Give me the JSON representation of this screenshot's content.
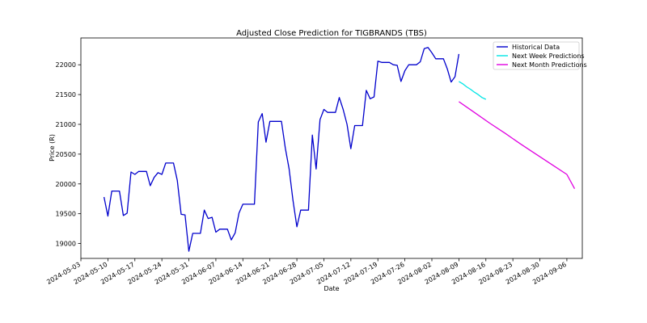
{
  "chart_data": {
    "type": "line",
    "title": "Adjusted Close Prediction for TIGBRANDS (TBS)",
    "xlabel": "Date",
    "ylabel": "Price (R)",
    "xlim": [
      "2024-05-03",
      "2024-09-10"
    ],
    "ylim": [
      18750,
      22450
    ],
    "grid": false,
    "legend_position": "top-right",
    "x_ticks": [
      "2024-05-03",
      "2024-05-10",
      "2024-05-17",
      "2024-05-24",
      "2024-05-31",
      "2024-06-07",
      "2024-06-14",
      "2024-06-21",
      "2024-06-28",
      "2024-07-05",
      "2024-07-12",
      "2024-07-19",
      "2024-07-26",
      "2024-08-02",
      "2024-08-09",
      "2024-08-16",
      "2024-08-23",
      "2024-08-30",
      "2024-09-06"
    ],
    "y_ticks": [
      19000,
      19500,
      20000,
      20500,
      21000,
      21500,
      22000
    ],
    "series": [
      {
        "name": "Historical Data",
        "color": "#0000cc",
        "x": [
          "2024-05-09",
          "2024-05-10",
          "2024-05-11",
          "2024-05-13",
          "2024-05-14",
          "2024-05-15",
          "2024-05-16",
          "2024-05-17",
          "2024-05-18",
          "2024-05-20",
          "2024-05-21",
          "2024-05-22",
          "2024-05-23",
          "2024-05-24",
          "2024-05-25",
          "2024-05-27",
          "2024-05-28",
          "2024-05-29",
          "2024-05-30",
          "2024-05-31",
          "2024-06-01",
          "2024-06-03",
          "2024-06-04",
          "2024-06-05",
          "2024-06-06",
          "2024-06-07",
          "2024-06-08",
          "2024-06-10",
          "2024-06-11",
          "2024-06-12",
          "2024-06-13",
          "2024-06-14",
          "2024-06-17",
          "2024-06-18",
          "2024-06-19",
          "2024-06-20",
          "2024-06-21",
          "2024-06-24",
          "2024-06-25",
          "2024-06-26",
          "2024-06-27",
          "2024-06-28",
          "2024-06-29",
          "2024-07-01",
          "2024-07-02",
          "2024-07-03",
          "2024-07-04",
          "2024-07-05",
          "2024-07-06",
          "2024-07-08",
          "2024-07-09",
          "2024-07-10",
          "2024-07-11",
          "2024-07-12",
          "2024-07-13",
          "2024-07-15",
          "2024-07-16",
          "2024-07-17",
          "2024-07-18",
          "2024-07-19",
          "2024-07-20",
          "2024-07-22",
          "2024-07-23",
          "2024-07-24",
          "2024-07-25",
          "2024-07-26",
          "2024-07-27",
          "2024-07-29",
          "2024-07-30",
          "2024-07-31",
          "2024-08-01",
          "2024-08-02",
          "2024-08-03",
          "2024-08-05",
          "2024-08-06",
          "2024-08-07",
          "2024-08-08",
          "2024-08-09"
        ],
        "y": [
          19780,
          19460,
          19880,
          19880,
          19470,
          19510,
          20200,
          20160,
          20210,
          20210,
          19970,
          20110,
          20190,
          20160,
          20350,
          20350,
          20060,
          19490,
          19480,
          18870,
          19170,
          19170,
          19560,
          19420,
          19440,
          19190,
          19240,
          19240,
          19060,
          19180,
          19510,
          19660,
          19660,
          21040,
          21180,
          20700,
          21050,
          21050,
          20600,
          20250,
          19720,
          19280,
          19560,
          19560,
          20820,
          20250,
          21080,
          21250,
          21200,
          21200,
          21450,
          21250,
          21000,
          20590,
          20980,
          20980,
          21570,
          21430,
          21460,
          22060,
          22040,
          22040,
          22000,
          21990,
          21720,
          21900,
          22000,
          22000,
          22050,
          22270,
          22290,
          22200,
          22100,
          22100,
          21930,
          21710,
          21800,
          22180
        ]
      },
      {
        "name": "Next Week Predictions",
        "color": "#00e5e5",
        "x": [
          "2024-08-09",
          "2024-08-10",
          "2024-08-11",
          "2024-08-12",
          "2024-08-13",
          "2024-08-14",
          "2024-08-15",
          "2024-08-16"
        ],
        "y": [
          21720,
          21680,
          21630,
          21590,
          21540,
          21500,
          21450,
          21420
        ]
      },
      {
        "name": "Next Month Predictions",
        "color": "#e000e0",
        "x": [
          "2024-08-09",
          "2024-08-13",
          "2024-08-17",
          "2024-08-21",
          "2024-08-25",
          "2024-08-29",
          "2024-09-02",
          "2024-09-06",
          "2024-09-08"
        ],
        "y": [
          21380,
          21200,
          21020,
          20850,
          20670,
          20500,
          20330,
          20160,
          19920
        ]
      }
    ]
  }
}
